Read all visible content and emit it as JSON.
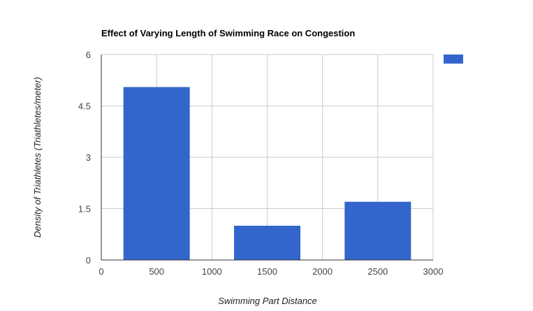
{
  "chart_data": {
    "type": "bar",
    "title": "Effect of Varying Length of Swimming Race on Congestion",
    "xlabel": "Swimming Part Distance",
    "ylabel": "Density of Triathletes (Triathletes/meter)",
    "xlim": [
      0,
      3000
    ],
    "ylim": [
      0,
      6
    ],
    "x_ticks": [
      "0",
      "500",
      "1000",
      "1500",
      "2000",
      "2500",
      "3000"
    ],
    "y_ticks": [
      "0",
      "1.5",
      "3",
      "4.5",
      "6"
    ],
    "grid": true,
    "legend": "right",
    "bar_width": 600,
    "series": [
      {
        "x": [
          500,
          1500,
          2500
        ],
        "values": [
          5.05,
          1.0,
          1.7
        ],
        "color": "#3366cc"
      }
    ]
  }
}
